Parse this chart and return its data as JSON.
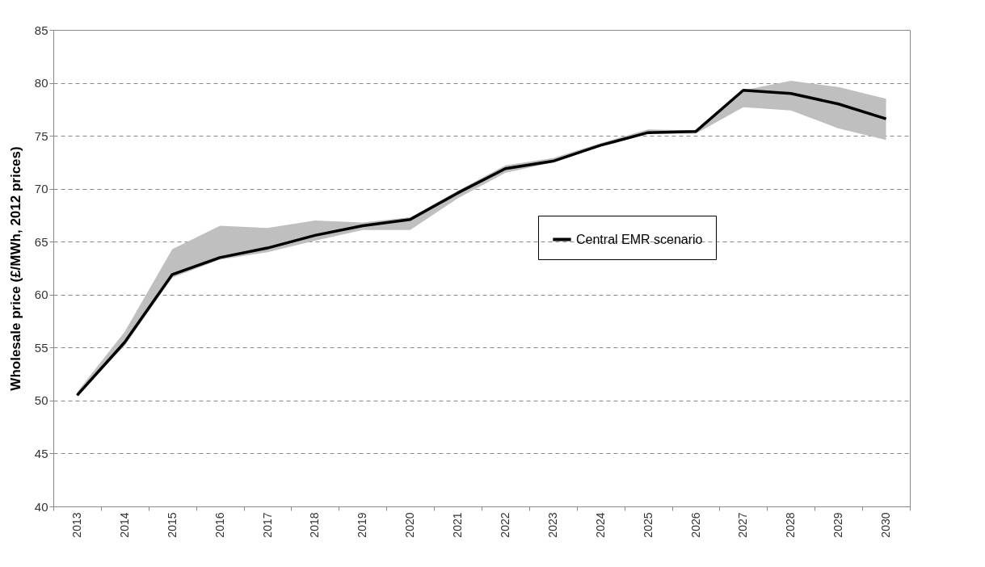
{
  "chart_data": {
    "type": "line",
    "ylabel": "Wholesale price (£/MWh, 2012 prices)",
    "categories": [
      "2013",
      "2014",
      "2015",
      "2016",
      "2017",
      "2018",
      "2019",
      "2020",
      "2021",
      "2022",
      "2023",
      "2024",
      "2025",
      "2026",
      "2027",
      "2028",
      "2029",
      "2030"
    ],
    "series": [
      {
        "name": "Central EMR scenario",
        "color": "#000000",
        "values": [
          50.5,
          55.5,
          61.9,
          63.5,
          64.4,
          65.6,
          66.5,
          67.1,
          69.6,
          71.9,
          72.6,
          74.1,
          75.3,
          75.4,
          79.3,
          79.0,
          78.0,
          76.6
        ],
        "lower": [
          50.4,
          55.2,
          61.6,
          63.3,
          64.0,
          65.1,
          66.1,
          66.1,
          69.1,
          71.5,
          72.5,
          74.0,
          75.2,
          75.2,
          77.7,
          77.4,
          75.7,
          74.6
        ],
        "upper": [
          50.8,
          56.5,
          64.3,
          66.5,
          66.3,
          67.0,
          66.8,
          67.3,
          69.8,
          72.2,
          72.9,
          74.3,
          75.6,
          75.5,
          79.3,
          80.2,
          79.6,
          78.5
        ]
      }
    ],
    "ylim": [
      40,
      85
    ],
    "yticks": [
      40,
      45,
      50,
      55,
      60,
      65,
      70,
      75,
      80,
      85
    ],
    "grid": "y",
    "legend": "right",
    "line_style": "solid"
  }
}
